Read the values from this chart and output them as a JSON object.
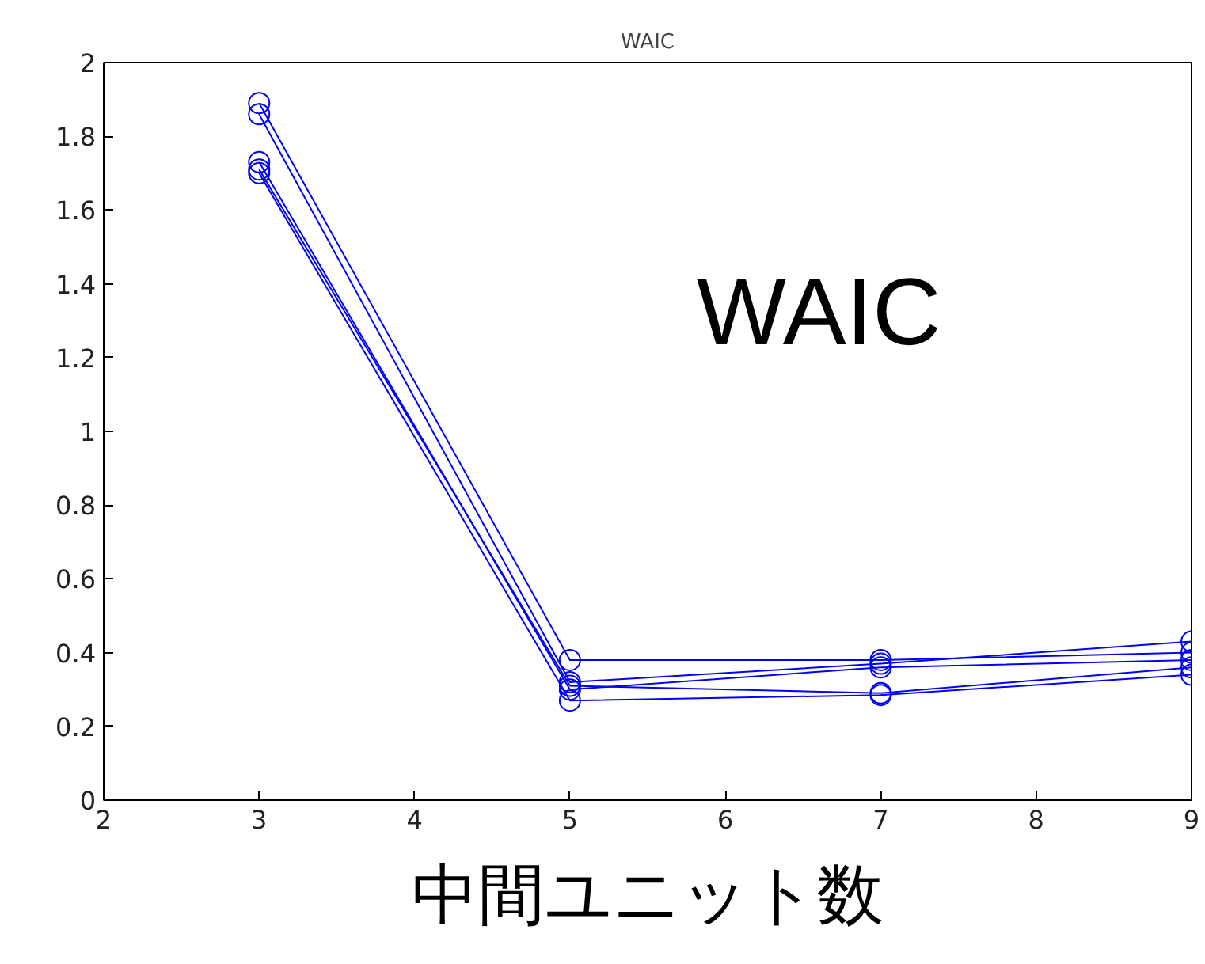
{
  "chart_data": {
    "type": "line",
    "title": "WAIC",
    "xlabel": "中間ユニット数",
    "annotations": [
      "WAIC"
    ],
    "x": [
      3,
      5,
      7,
      9
    ],
    "series": [
      {
        "color": "#0000ff",
        "values": [
          1.89,
          0.38,
          0.38,
          0.4
        ]
      },
      {
        "color": "#0000ff",
        "values": [
          1.86,
          0.32,
          0.37,
          0.43
        ]
      },
      {
        "color": "#0000ff",
        "values": [
          1.73,
          0.3,
          0.36,
          0.38
        ]
      },
      {
        "color": "#0000ff",
        "values": [
          1.71,
          0.31,
          0.29,
          0.36
        ]
      },
      {
        "color": "#0000ff",
        "values": [
          1.7,
          0.27,
          0.285,
          0.34
        ]
      }
    ],
    "xlim": [
      2,
      9
    ],
    "ylim": [
      0,
      2
    ],
    "xticks": [
      2,
      3,
      4,
      5,
      6,
      7,
      8,
      9
    ],
    "yticks": [
      0,
      0.2,
      0.4,
      0.6,
      0.8,
      1,
      1.2,
      1.4,
      1.6,
      1.8,
      2
    ],
    "marker": "circle",
    "line_style": "solid",
    "grid": false
  }
}
